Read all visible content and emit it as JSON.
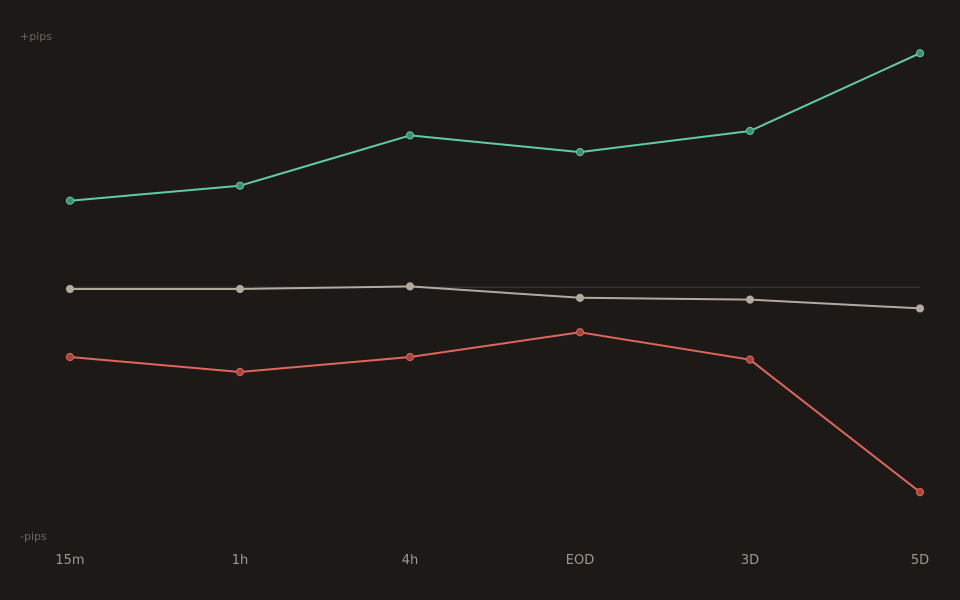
{
  "chart_data": {
    "type": "line",
    "title": "",
    "xlabel": "",
    "ylabel": "",
    "y_top_label": "+pips",
    "y_bottom_label": "-pips",
    "categories": [
      "15m",
      "1h",
      "4h",
      "EOD",
      "3D",
      "5D"
    ],
    "ylim": [
      -125,
      140
    ],
    "zero_line": true,
    "grid": false,
    "legend": "none",
    "series": [
      {
        "color": "#5fcda4",
        "marker_color": "#3d8f6d",
        "values": [
          49,
          57.5,
          86,
          76.5,
          88.5,
          132.5
        ]
      },
      {
        "color": "#b3a99f",
        "marker_color": "#b3a99f",
        "values": [
          -1,
          -1,
          0.5,
          -6,
          -7,
          -12
        ]
      },
      {
        "color": "#e0665d",
        "marker_color": "#a8443e",
        "values": [
          -39.5,
          -48,
          -39.5,
          -25.5,
          -41,
          -116
        ]
      }
    ],
    "colors": {
      "background": "#1d1917",
      "zero_line": "#3a3430",
      "axis_hint_text": "#6f6861",
      "tick_text": "#a09890"
    }
  }
}
